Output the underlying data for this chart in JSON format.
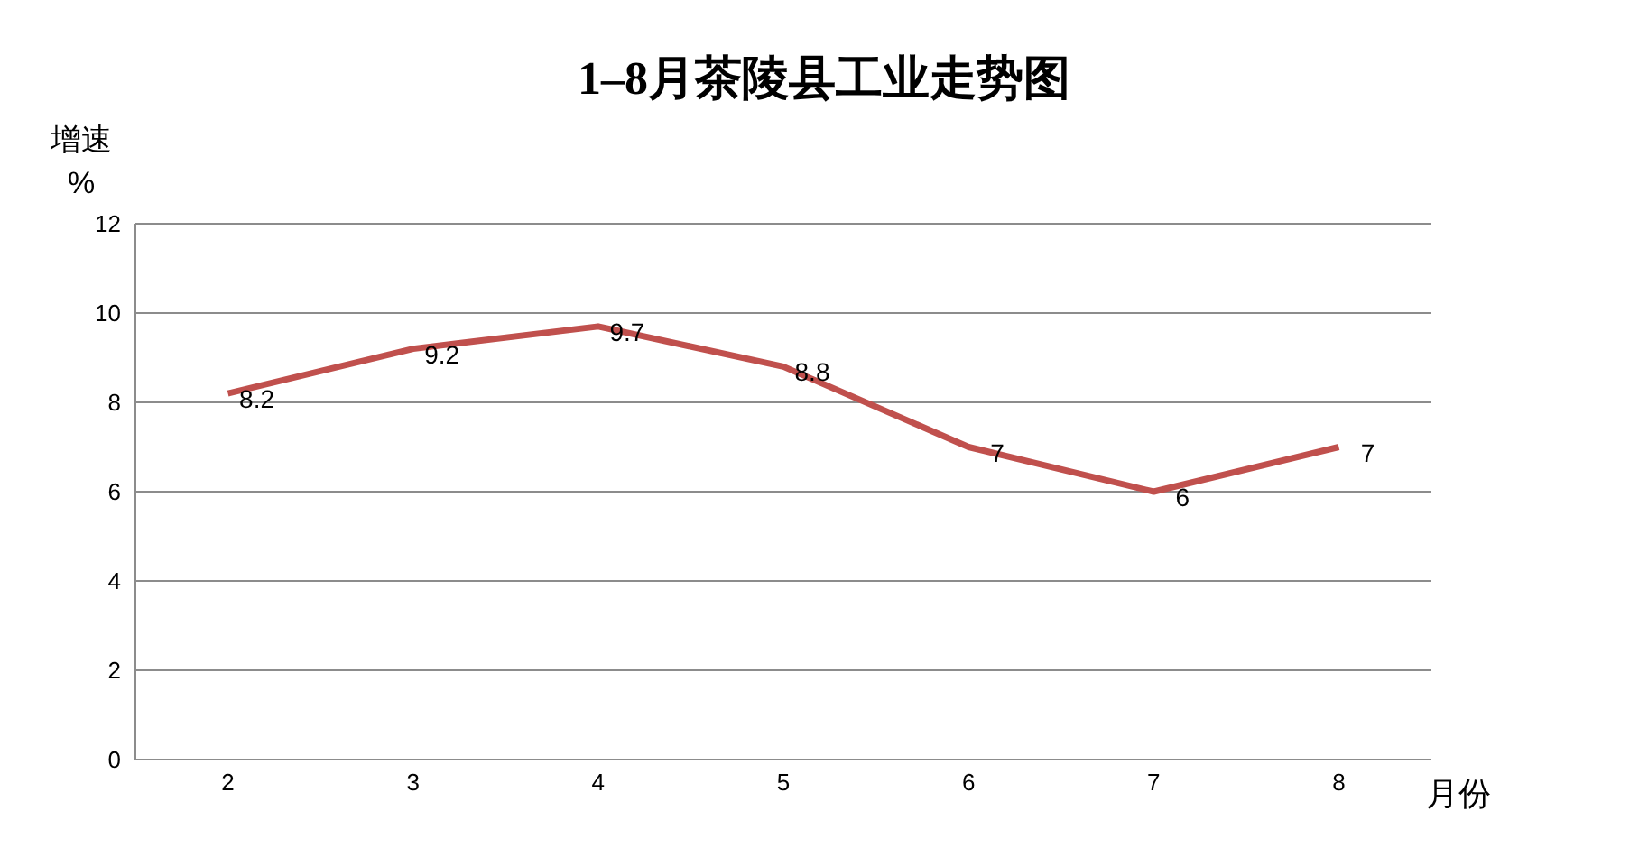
{
  "chart_data": {
    "type": "line",
    "title": "1–8月茶陵县工业走势图",
    "ylabel": "增速\n%",
    "xlabel": "月份",
    "categories": [
      "2",
      "3",
      "4",
      "5",
      "6",
      "7",
      "8"
    ],
    "series": [
      {
        "color": "#c0504d",
        "values": [
          8.2,
          9.2,
          9.7,
          8.8,
          7,
          6,
          7
        ]
      }
    ],
    "ylim": [
      0,
      12
    ],
    "yticks": [
      0,
      2,
      4,
      6,
      8,
      10,
      12
    ],
    "grid": "y",
    "legend": false,
    "data_labels": true,
    "marker": "none",
    "line_style": "solid"
  }
}
